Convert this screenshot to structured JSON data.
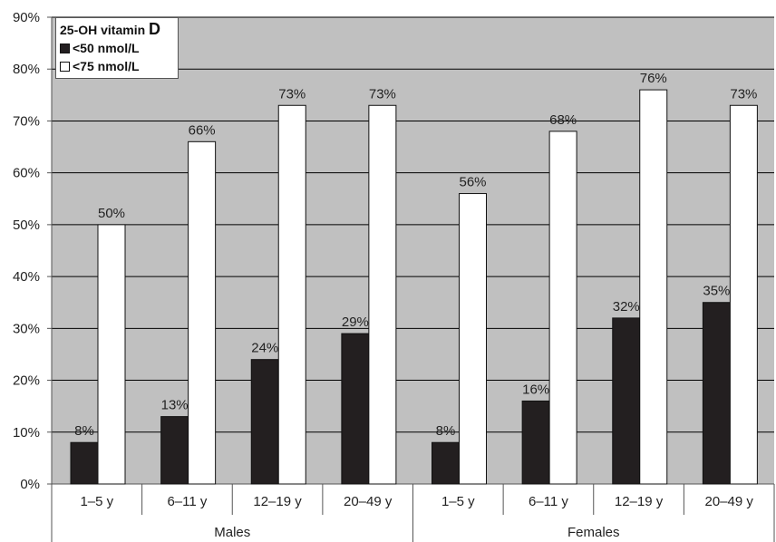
{
  "chart_data": {
    "type": "bar",
    "categories": [
      "1–5 y",
      "6–11 y",
      "12–19 y",
      "20–49 y",
      "1–5 y",
      "6–11 y",
      "12–19 y",
      "20–49 y"
    ],
    "groups": [
      {
        "label": "Males",
        "categories": [
          "1–5 y",
          "6–11 y",
          "12–19 y",
          "20–49 y"
        ]
      },
      {
        "label": "Females",
        "categories": [
          "1–5 y",
          "6–11 y",
          "12–19 y",
          "20–49 y"
        ]
      }
    ],
    "series": [
      {
        "name": "<50 nmol/L",
        "color": "#231f20",
        "values": [
          8,
          13,
          24,
          29,
          8,
          16,
          32,
          35
        ],
        "labels": [
          "8%",
          "13%",
          "24%",
          "29%",
          "8%",
          "16%",
          "32%",
          "35%"
        ]
      },
      {
        "name": "<75 nmol/L",
        "color": "#ffffff",
        "values": [
          50,
          66,
          73,
          73,
          56,
          68,
          76,
          73
        ],
        "labels": [
          "50%",
          "66%",
          "73%",
          "73%",
          "56%",
          "68%",
          "76%",
          "73%"
        ]
      }
    ],
    "yticks": [
      "0%",
      "10%",
      "20%",
      "30%",
      "40%",
      "50%",
      "60%",
      "70%",
      "80%",
      "90%"
    ],
    "ylim": [
      0,
      90
    ],
    "grid": true,
    "legend_title_prefix": "25-OH vitamin ",
    "legend_title_suffix": "D",
    "legend_position": "top-left",
    "plot_background": "#c0c0c0"
  }
}
